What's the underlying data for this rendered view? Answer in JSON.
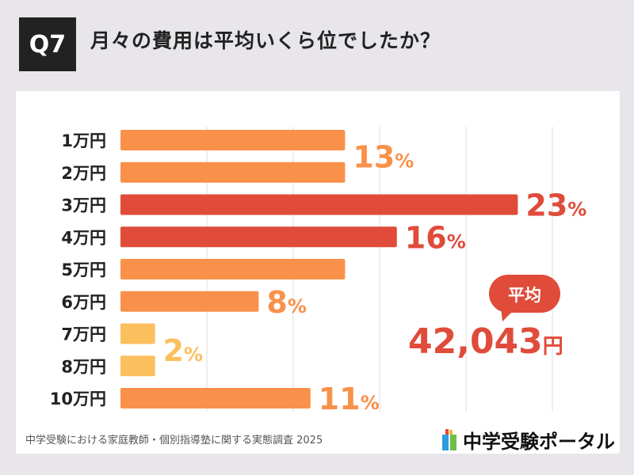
{
  "header": {
    "badge": "Q7",
    "title": "月々の費用は平均いくら位でしたか？"
  },
  "chart_data": {
    "type": "bar",
    "orientation": "horizontal",
    "categories": [
      "1万円",
      "2万円",
      "3万円",
      "4万円",
      "5万円",
      "6万円",
      "7万円",
      "8万円",
      "10万円"
    ],
    "values": [
      13,
      13,
      23,
      16,
      13,
      8,
      2,
      2,
      11
    ],
    "unit": "%",
    "xlim": [
      0,
      25
    ],
    "grid": true,
    "gridlines": [
      5,
      10,
      15,
      20,
      25
    ],
    "data_labels": [
      {
        "text": "13",
        "rows": [
          0,
          1
        ]
      },
      {
        "text": "23",
        "rows": [
          2
        ]
      },
      {
        "text": "16",
        "rows": [
          3
        ]
      },
      {
        "text": "8",
        "rows": [
          5
        ]
      },
      {
        "text": "2",
        "rows": [
          6,
          7
        ]
      },
      {
        "text": "11",
        "rows": [
          8
        ]
      }
    ],
    "colors": {
      "orange": "#f9914a",
      "red": "#e04b3a",
      "yellow": "#fbbf5e"
    },
    "bar_colors": [
      "orange",
      "orange",
      "red",
      "red",
      "orange",
      "orange",
      "yellow",
      "yellow",
      "orange"
    ],
    "annotation": {
      "bubble": "平均",
      "value": "42,043",
      "unit": "円"
    }
  },
  "footer": {
    "source": "中学受験における家庭教師・個別指導塾に関する実態調査 2025",
    "logo": "中学受験ポータル"
  }
}
